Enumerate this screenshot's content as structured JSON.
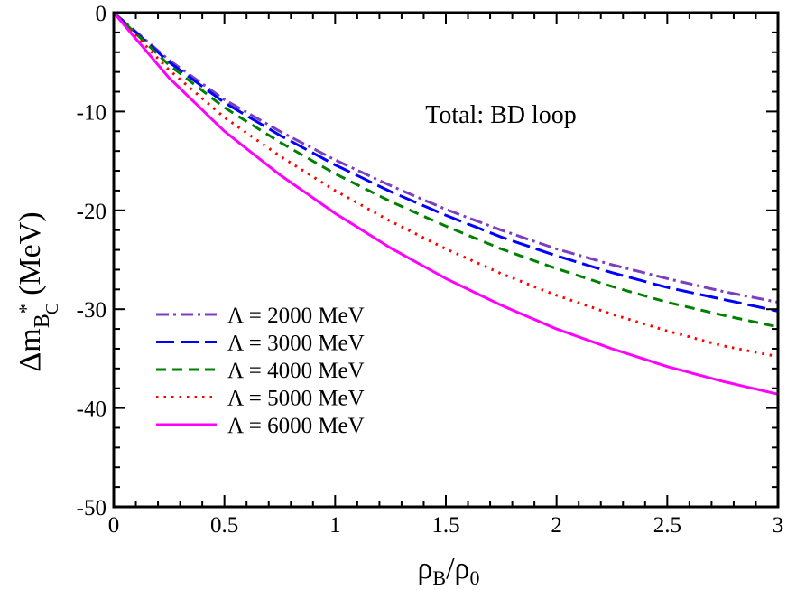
{
  "chart_data": {
    "type": "line",
    "annotation": "Total: BD loop",
    "xlabel": {
      "main": "ρ",
      "sub1": "B",
      "sep": "/ρ",
      "sub2": "0"
    },
    "ylabel": {
      "prefix": "Δm",
      "sub": "B",
      "sup": "*",
      "subsub": "C",
      "suffix": "(MeV)"
    },
    "xlim": [
      0,
      3
    ],
    "ylim": [
      -50,
      0
    ],
    "x_ticks": [
      0,
      0.5,
      1,
      1.5,
      2,
      2.5,
      3
    ],
    "x_tick_labels": [
      "0",
      "0.5",
      "1",
      "1.5",
      "2",
      "2.5",
      "3"
    ],
    "y_ticks": [
      0,
      -10,
      -20,
      -30,
      -40,
      -50
    ],
    "y_tick_labels": [
      "0",
      "-10",
      "-20",
      "-30",
      "-40",
      "-50"
    ],
    "x": [
      0,
      0.25,
      0.5,
      0.75,
      1,
      1.25,
      1.5,
      1.75,
      2,
      2.25,
      2.5,
      2.75,
      3
    ],
    "series": [
      {
        "name": "Λ = 2000 MeV",
        "color": "#7b3fbf",
        "dash": "dashdot",
        "values": [
          0,
          -4.8,
          -8.8,
          -12.0,
          -14.9,
          -17.5,
          -19.9,
          -22.0,
          -23.9,
          -25.5,
          -26.9,
          -28.2,
          -29.3
        ]
      },
      {
        "name": "Λ = 3000 MeV",
        "color": "#0000ff",
        "dash": "longdash",
        "values": [
          0,
          -5.0,
          -9.1,
          -12.4,
          -15.4,
          -18.1,
          -20.5,
          -22.7,
          -24.6,
          -26.3,
          -27.8,
          -29.0,
          -30.2
        ]
      },
      {
        "name": "Λ = 4000 MeV",
        "color": "#008000",
        "dash": "dash",
        "values": [
          0,
          -5.3,
          -9.6,
          -13.1,
          -16.3,
          -19.1,
          -21.6,
          -23.9,
          -25.9,
          -27.7,
          -29.3,
          -30.6,
          -31.8
        ]
      },
      {
        "name": "Λ = 5000 MeV",
        "color": "#ff0000",
        "dash": "dot",
        "values": [
          0,
          -5.8,
          -10.6,
          -14.5,
          -18.0,
          -21.1,
          -23.9,
          -26.4,
          -28.6,
          -30.5,
          -32.2,
          -33.7,
          -34.8
        ]
      },
      {
        "name": "Λ = 6000 MeV",
        "color": "#ff00ff",
        "dash": "solid",
        "values": [
          0,
          -6.6,
          -12.0,
          -16.4,
          -20.3,
          -23.8,
          -26.9,
          -29.6,
          -32.0,
          -34.0,
          -35.8,
          -37.3,
          -38.6
        ]
      }
    ],
    "legend_position": "lower-left"
  }
}
